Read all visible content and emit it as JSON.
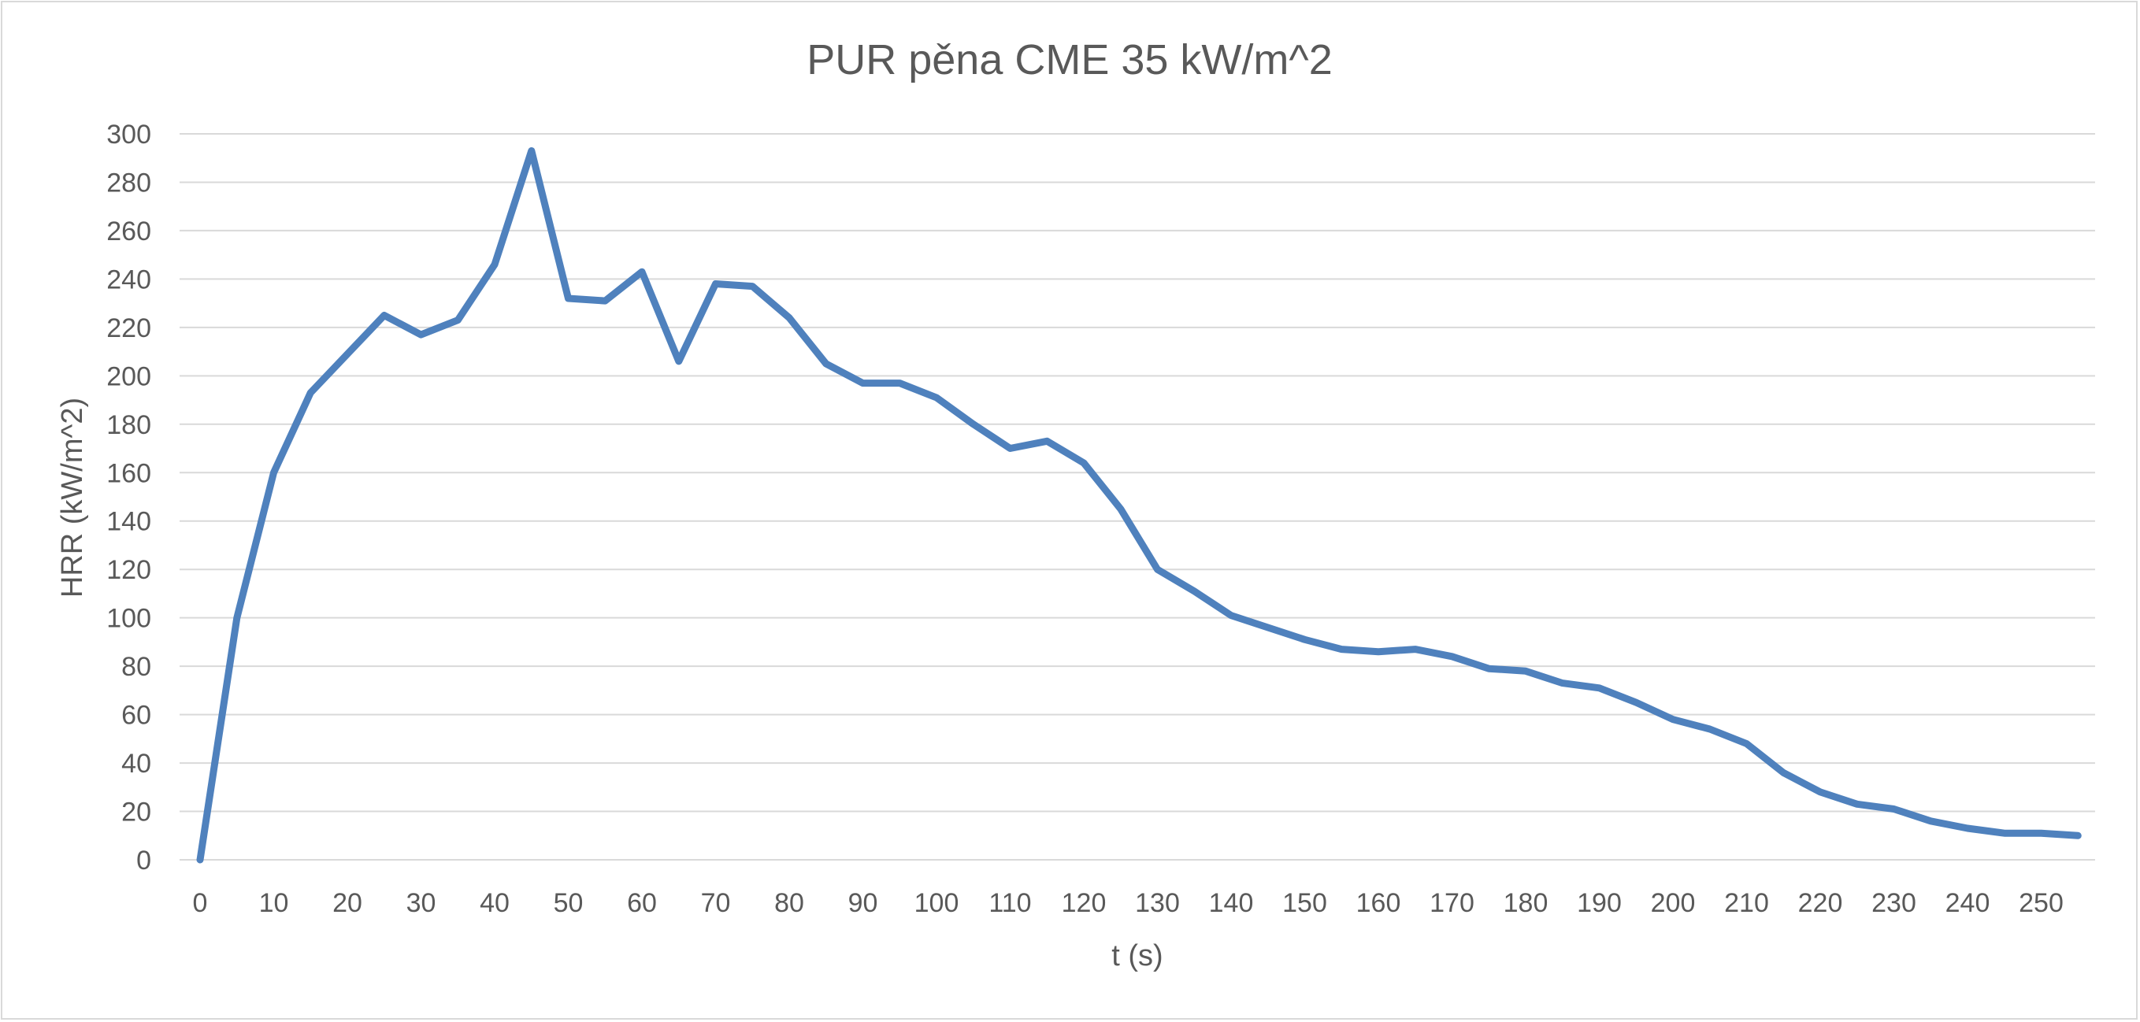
{
  "chart_data": {
    "type": "line",
    "title": "PUR pěna CME 35 kW/m^2",
    "xlabel": "t (s)",
    "ylabel": "HRR (kW/m^2)",
    "ylim": [
      0,
      300
    ],
    "y_ticks": [
      0,
      20,
      40,
      60,
      80,
      100,
      120,
      140,
      160,
      180,
      200,
      220,
      240,
      260,
      280,
      300
    ],
    "x_ticks": [
      0,
      10,
      20,
      30,
      40,
      50,
      60,
      70,
      80,
      90,
      100,
      110,
      120,
      130,
      140,
      150,
      160,
      170,
      180,
      190,
      200,
      210,
      220,
      230,
      240,
      250
    ],
    "grid": true,
    "legend": "none",
    "series": [
      {
        "name": "HRR",
        "color": "#4f81bd",
        "x": [
          0,
          5,
          10,
          15,
          20,
          25,
          30,
          35,
          40,
          45,
          50,
          55,
          60,
          65,
          70,
          75,
          80,
          85,
          90,
          95,
          100,
          105,
          110,
          115,
          120,
          125,
          130,
          135,
          140,
          145,
          150,
          155,
          160,
          165,
          170,
          175,
          180,
          185,
          190,
          195,
          200,
          205,
          210,
          215,
          220,
          225,
          230,
          235,
          240,
          245,
          250,
          255
        ],
        "values": [
          0,
          100,
          160,
          193,
          209,
          225,
          217,
          223,
          246,
          293,
          232,
          231,
          243,
          206,
          238,
          237,
          224,
          205,
          197,
          197,
          191,
          180,
          170,
          173,
          164,
          145,
          120,
          111,
          101,
          96,
          91,
          87,
          86,
          87,
          84,
          79,
          78,
          73,
          71,
          65,
          58,
          54,
          48,
          36,
          28,
          23,
          21,
          16,
          13,
          11,
          11,
          10
        ]
      }
    ]
  }
}
